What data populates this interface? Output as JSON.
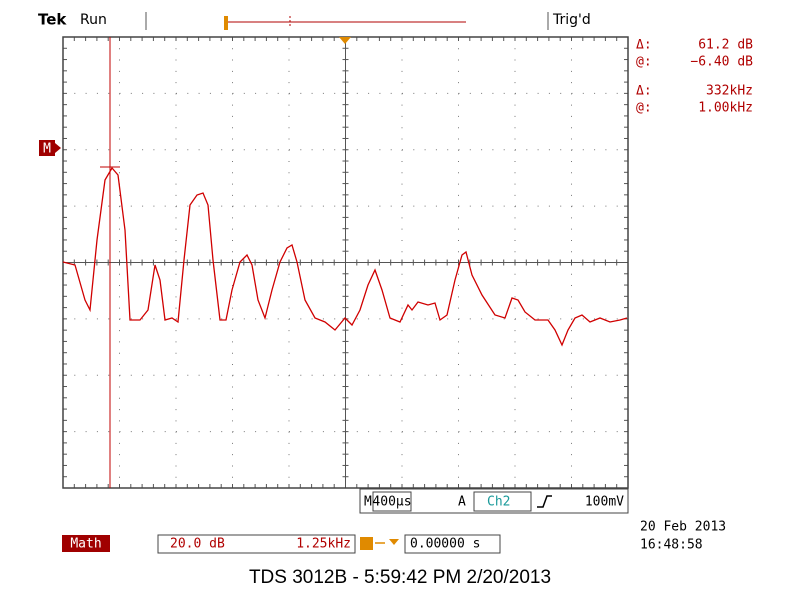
{
  "header": {
    "brand": "Tek",
    "status": "Run",
    "trigger_status": "Trig'd"
  },
  "readouts": [
    {
      "label": "Δ:",
      "value": "61.2 dB"
    },
    {
      "label": "@:",
      "value": "−6.40 dB"
    },
    {
      "label": "Δ:",
      "value": "332kHz"
    },
    {
      "label": "@:",
      "value": "1.00kHz"
    }
  ],
  "channel_marker": "M",
  "timebase": {
    "label": "M",
    "value": "400µs"
  },
  "trigger": {
    "label": "A",
    "source": "Ch2",
    "level": "100mV"
  },
  "math": {
    "label": "Math",
    "scale": "20.0 dB",
    "span": "1.25kHz",
    "position": "0.00000 s"
  },
  "timestamp": {
    "date": "20 Feb 2013",
    "time": "16:48:58"
  },
  "footer": "TDS 3012B - 5:59:42 PM 2/20/2013"
}
